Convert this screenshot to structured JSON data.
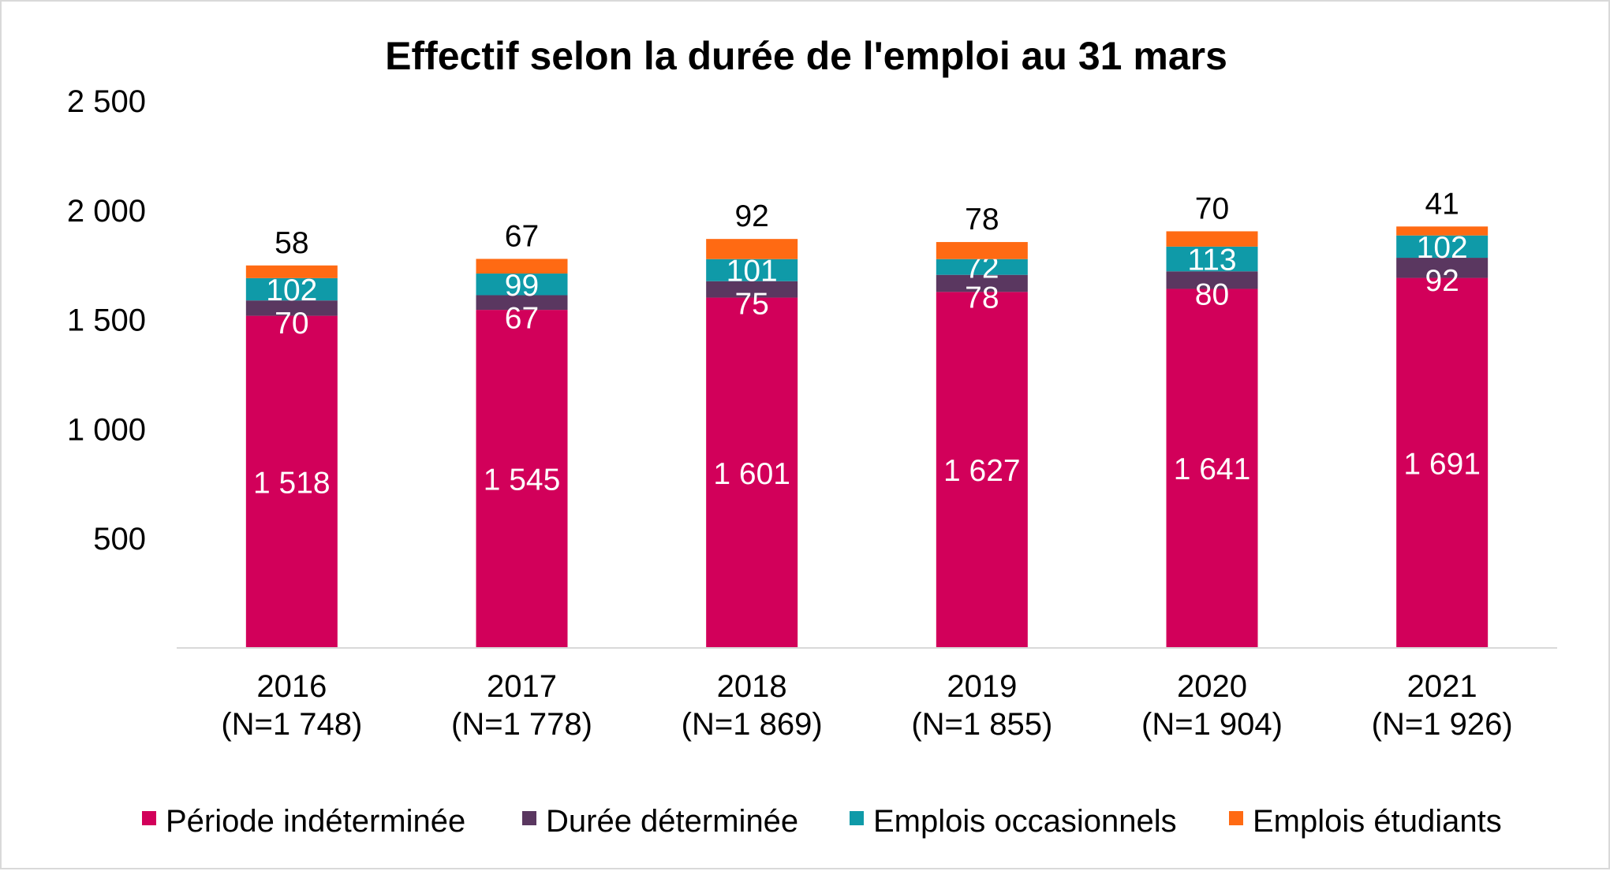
{
  "chart_data": {
    "type": "bar",
    "stacked": true,
    "title": "Effectif selon la durée de l'emploi au 31 mars",
    "xlabel": "",
    "ylabel": "",
    "ylim": [
      0,
      2500
    ],
    "yticks": [
      500,
      1000,
      1500,
      2000,
      2500
    ],
    "ytick_labels": [
      "500",
      "1 000",
      "1 500",
      "2 000",
      "2 500"
    ],
    "grid": false,
    "legend_position": "bottom",
    "categories": [
      [
        "2016",
        "(N=1 748)"
      ],
      [
        "2017",
        "(N=1 778)"
      ],
      [
        "2018",
        "(N=1 869)"
      ],
      [
        "2019",
        "(N=1 855)"
      ],
      [
        "2020",
        "(N=1 904)"
      ],
      [
        "2021",
        "(N=1 926)"
      ]
    ],
    "series": [
      {
        "name": "Période indéterminée",
        "color": "#d2005a",
        "label_color": "#ffffff",
        "values": [
          1518,
          1545,
          1601,
          1627,
          1641,
          1691
        ],
        "labels": [
          "1 518",
          "1 545",
          "1 601",
          "1 627",
          "1 641",
          "1 691"
        ]
      },
      {
        "name": "Durée déterminée",
        "color": "#5a3760",
        "label_color": "#ffffff",
        "values": [
          70,
          67,
          75,
          78,
          80,
          92
        ],
        "labels": [
          "70",
          "67",
          "75",
          "78",
          "80",
          "92"
        ]
      },
      {
        "name": "Emplois occasionnels",
        "color": "#0f9aa8",
        "label_color": "#ffffff",
        "values": [
          102,
          99,
          101,
          72,
          113,
          102
        ],
        "labels": [
          "102",
          "99",
          "101",
          "72",
          "113",
          "102"
        ]
      },
      {
        "name": "Emplois étudiants",
        "color": "#ff6a13",
        "label_color": "#000000",
        "values": [
          58,
          67,
          92,
          78,
          70,
          41
        ],
        "labels": [
          "58",
          "67",
          "92",
          "78",
          "70",
          "41"
        ]
      }
    ]
  }
}
